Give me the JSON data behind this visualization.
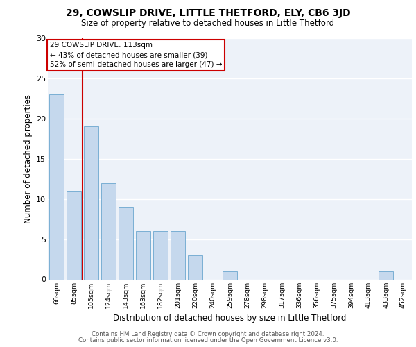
{
  "title1": "29, COWSLIP DRIVE, LITTLE THETFORD, ELY, CB6 3JD",
  "title2": "Size of property relative to detached houses in Little Thetford",
  "xlabel": "Distribution of detached houses by size in Little Thetford",
  "ylabel": "Number of detached properties",
  "categories": [
    "66sqm",
    "85sqm",
    "105sqm",
    "124sqm",
    "143sqm",
    "163sqm",
    "182sqm",
    "201sqm",
    "220sqm",
    "240sqm",
    "259sqm",
    "278sqm",
    "298sqm",
    "317sqm",
    "336sqm",
    "356sqm",
    "375sqm",
    "394sqm",
    "413sqm",
    "433sqm",
    "452sqm"
  ],
  "values": [
    23,
    11,
    19,
    12,
    9,
    6,
    6,
    6,
    3,
    0,
    1,
    0,
    0,
    0,
    0,
    0,
    0,
    0,
    0,
    1,
    0
  ],
  "bar_color": "#c5d8ed",
  "bar_edge_color": "#7aafd4",
  "annotation_text_line1": "29 COWSLIP DRIVE: 113sqm",
  "annotation_text_line2": "← 43% of detached houses are smaller (39)",
  "annotation_text_line3": "52% of semi-detached houses are larger (47) →",
  "annotation_box_color": "#ffffff",
  "annotation_box_edge": "#cc0000",
  "red_line_color": "#cc0000",
  "ylim": [
    0,
    30
  ],
  "yticks": [
    0,
    5,
    10,
    15,
    20,
    25,
    30
  ],
  "bg_color": "#edf2f9",
  "grid_color": "#ffffff",
  "footer1": "Contains HM Land Registry data © Crown copyright and database right 2024.",
  "footer2": "Contains public sector information licensed under the Open Government Licence v3.0."
}
